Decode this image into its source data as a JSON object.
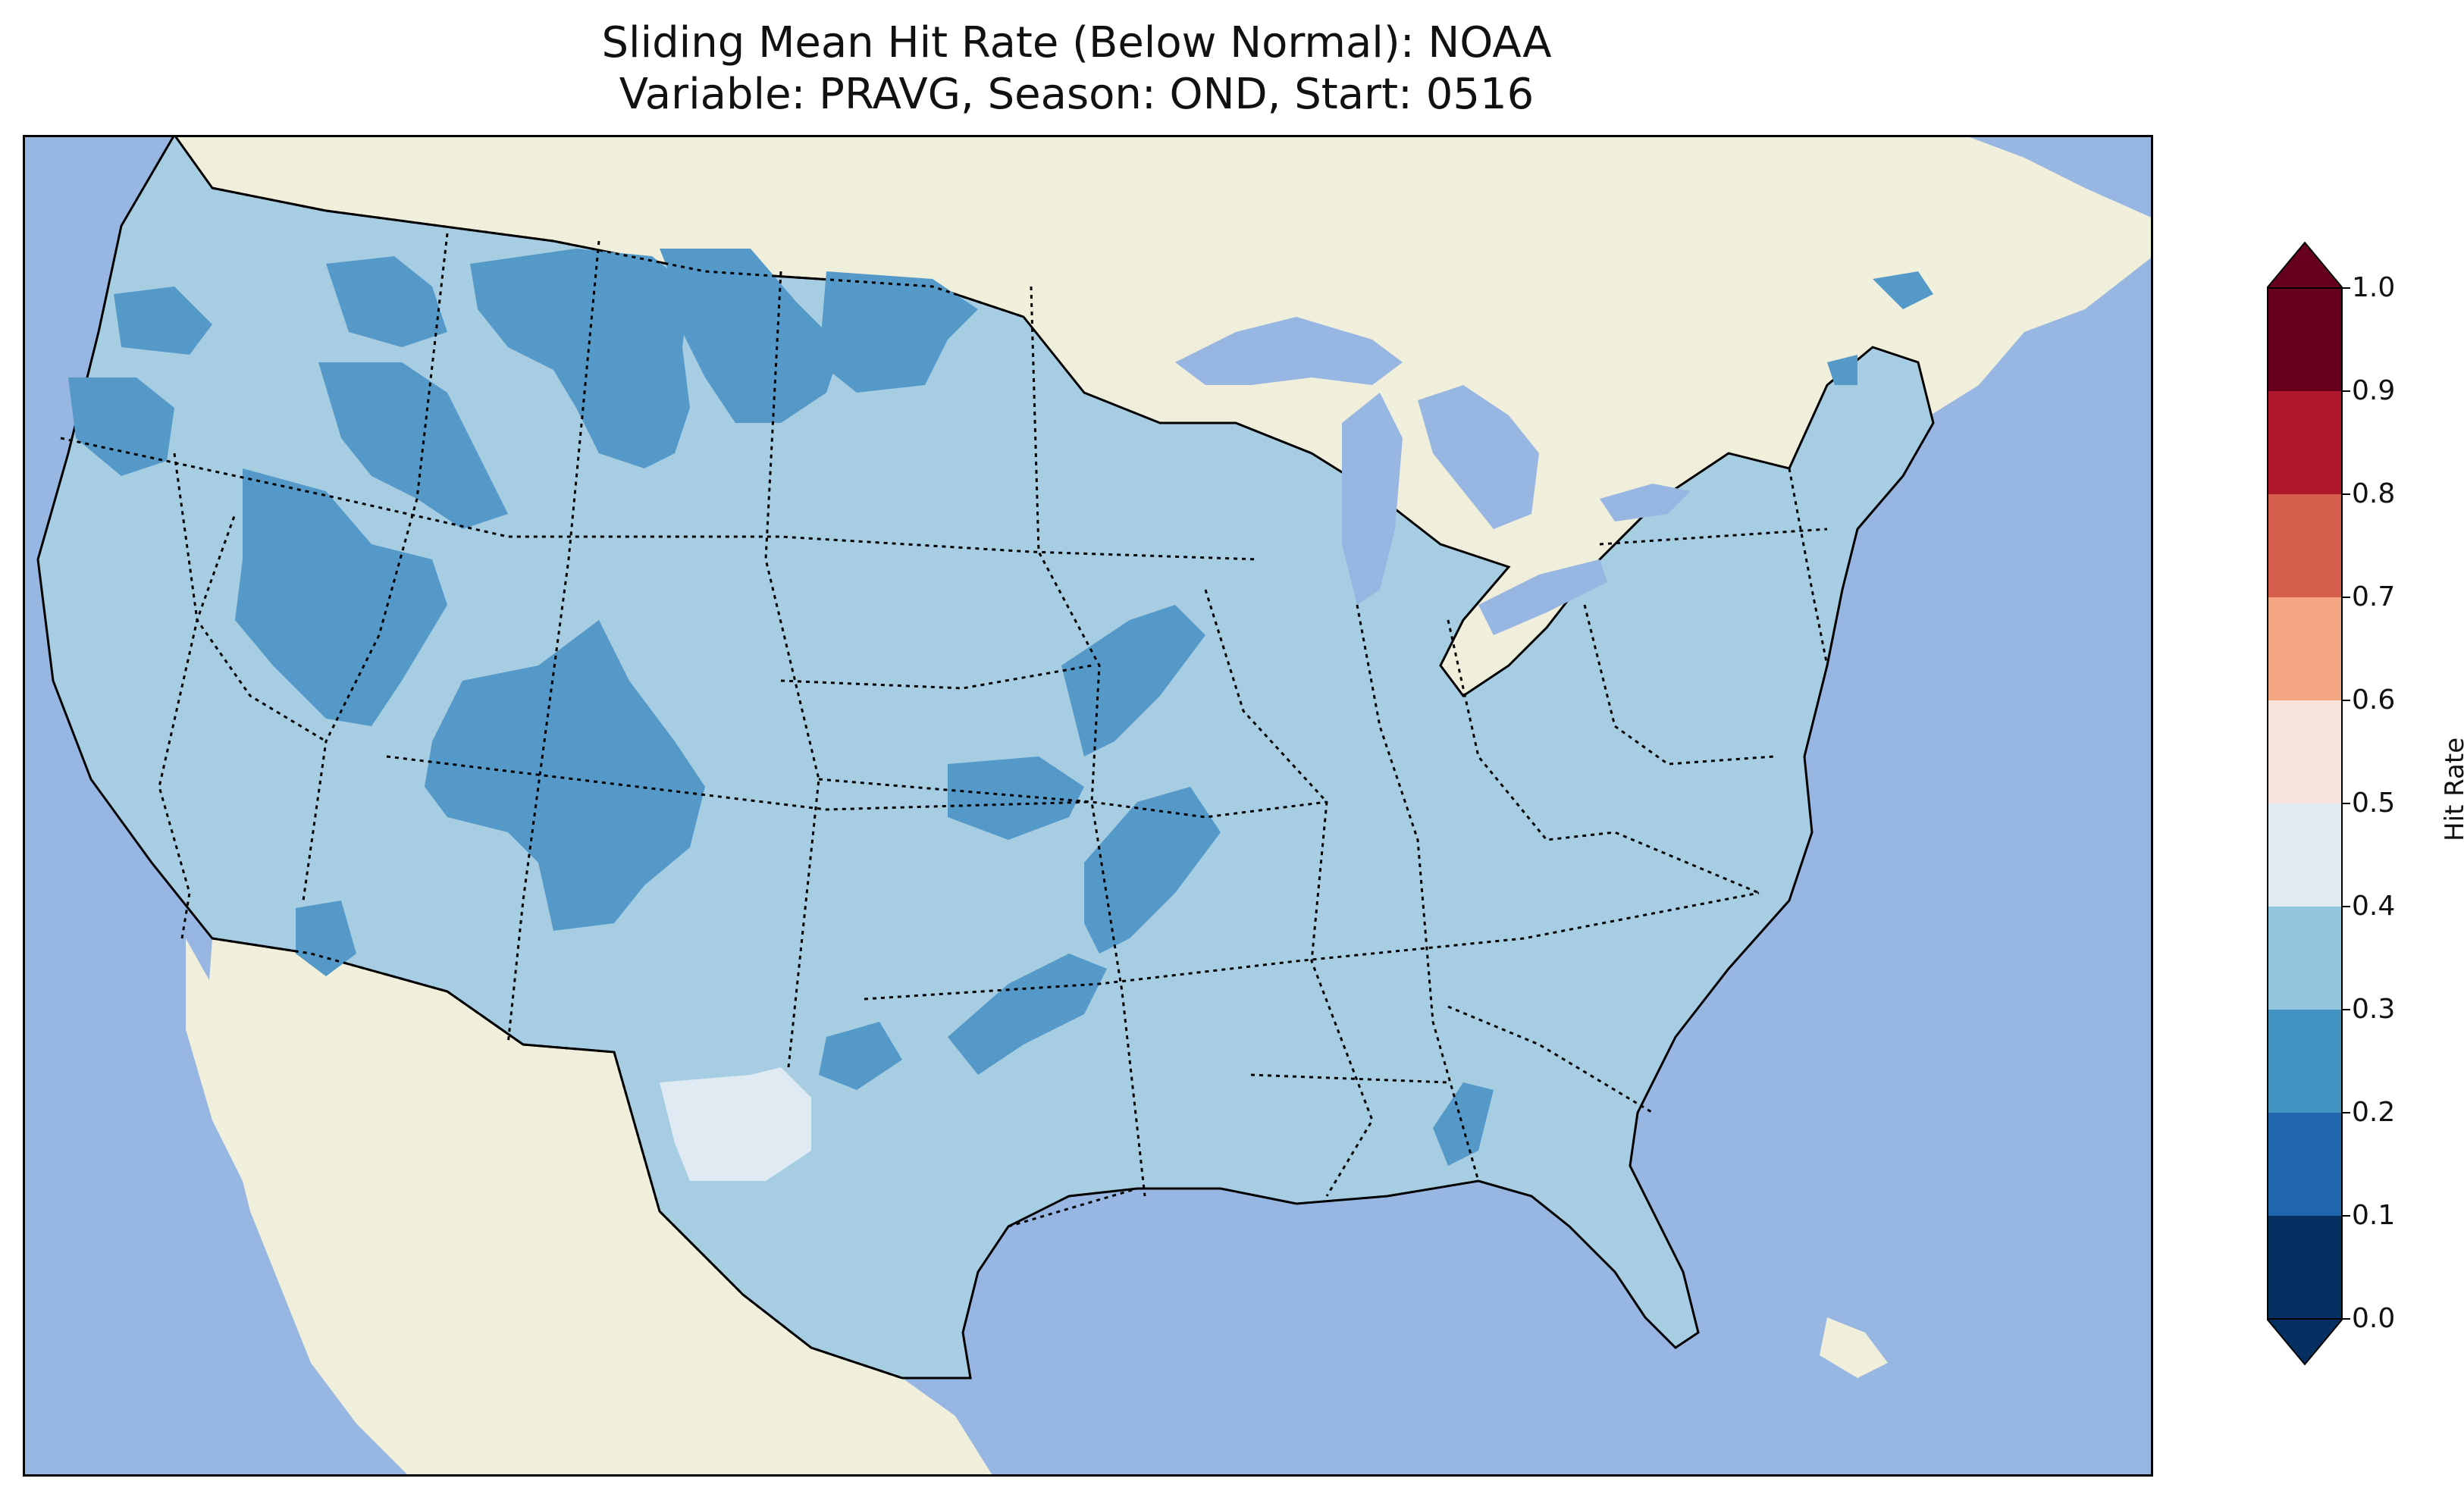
{
  "title": {
    "line1": "Sliding Mean Hit Rate (Below Normal): NOAA",
    "line2": "Variable: PRAVG, Season: OND, Start: 0516"
  },
  "colorbar": {
    "label": "Hit Rate",
    "ticks": [
      "0.0",
      "0.1",
      "0.2",
      "0.3",
      "0.4",
      "0.5",
      "0.6",
      "0.7",
      "0.8",
      "0.9",
      "1.0"
    ],
    "bins": [
      {
        "range": "0.0-0.1",
        "color": "#053061"
      },
      {
        "range": "0.1-0.2",
        "color": "#2166ac"
      },
      {
        "range": "0.2-0.3",
        "color": "#4393c3"
      },
      {
        "range": "0.3-0.4",
        "color": "#92c5de"
      },
      {
        "range": "0.4-0.5",
        "color": "#dfeaf2"
      },
      {
        "range": "0.5-0.6",
        "color": "#f8e4da"
      },
      {
        "range": "0.6-0.7",
        "color": "#f4a582"
      },
      {
        "range": "0.7-0.8",
        "color": "#d6604d"
      },
      {
        "range": "0.8-0.9",
        "color": "#b2182b"
      },
      {
        "range": "0.9-1.0",
        "color": "#67001f"
      }
    ],
    "extend": "both"
  },
  "map": {
    "region": "Contiguous United States",
    "ocean_color": "#97b6e1",
    "land_color": "#efefdc",
    "dominant_value_bin": "0.3-0.4",
    "features": [
      "coastlines",
      "state-borders",
      "lakes"
    ]
  }
}
